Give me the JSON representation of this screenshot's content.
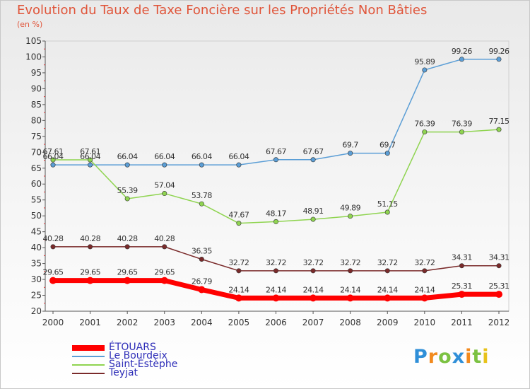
{
  "chart_data": {
    "type": "line",
    "title": "Evolution du Taux de Taxe Foncière sur les Propriétés Non Bâties",
    "ylabel": "(en %)",
    "xlabel": "",
    "ylim": [
      20,
      105
    ],
    "yticks": [
      20,
      25,
      30,
      35,
      40,
      45,
      50,
      55,
      60,
      65,
      70,
      75,
      80,
      85,
      90,
      95,
      100,
      105
    ],
    "categories": [
      "2000",
      "2001",
      "2002",
      "2003",
      "2004",
      "2005",
      "2006",
      "2007",
      "2008",
      "2009",
      "2010",
      "2011",
      "2012"
    ],
    "series": [
      {
        "name": "ÉTOUARS",
        "color": "#ff0000",
        "values": [
          29.65,
          29.65,
          29.65,
          29.65,
          26.79,
          24.14,
          24.14,
          24.14,
          24.14,
          24.14,
          24.14,
          25.31,
          25.31
        ],
        "labels": [
          "29.65",
          "29.65",
          "29.65",
          "29.65",
          "26.79",
          "24.14",
          "24.14",
          "24.14",
          "24.14",
          "24.14",
          "24.14",
          "25.31",
          "25.31"
        ]
      },
      {
        "name": "Le Bourdeix",
        "color": "#5b9ed6",
        "values": [
          66.04,
          66.04,
          66.04,
          66.04,
          66.04,
          66.04,
          67.67,
          67.67,
          69.7,
          69.7,
          95.89,
          99.26,
          99.26
        ],
        "labels": [
          "66.04",
          "66.04",
          "66.04",
          "66.04",
          "66.04",
          "66.04",
          "67.67",
          "67.67",
          "69.7",
          "69.7",
          "95.89",
          "99.26",
          "99.26"
        ]
      },
      {
        "name": "Saint-Estèphe",
        "color": "#8fd450",
        "values": [
          67.61,
          67.61,
          55.39,
          57.04,
          53.78,
          47.67,
          48.17,
          48.91,
          49.89,
          51.15,
          76.39,
          76.39,
          77.15
        ],
        "labels": [
          "67.61",
          "67.61",
          "55.39",
          "57.04",
          "53.78",
          "47.67",
          "48.17",
          "48.91",
          "49.89",
          "51.15",
          "76.39",
          "76.39",
          "77.15"
        ]
      },
      {
        "name": "Teyjat",
        "color": "#7a2a2a",
        "values": [
          40.28,
          40.28,
          40.28,
          40.28,
          36.35,
          32.72,
          32.72,
          32.72,
          32.72,
          32.72,
          32.72,
          34.31,
          34.31
        ],
        "labels": [
          "40.28",
          "40.28",
          "40.28",
          "40.28",
          "36.35",
          "32.72",
          "32.72",
          "32.72",
          "32.72",
          "32.72",
          "32.72",
          "34.31",
          "34.31"
        ]
      }
    ]
  },
  "logo": {
    "letters": [
      "P",
      "r",
      "o",
      "x",
      "i",
      "t",
      "i"
    ],
    "colors": [
      "#2f8fd8",
      "#f28a1e",
      "#7cc242",
      "#2f8fd8",
      "#f28a1e",
      "#7cc242",
      "#e8c21a"
    ]
  }
}
